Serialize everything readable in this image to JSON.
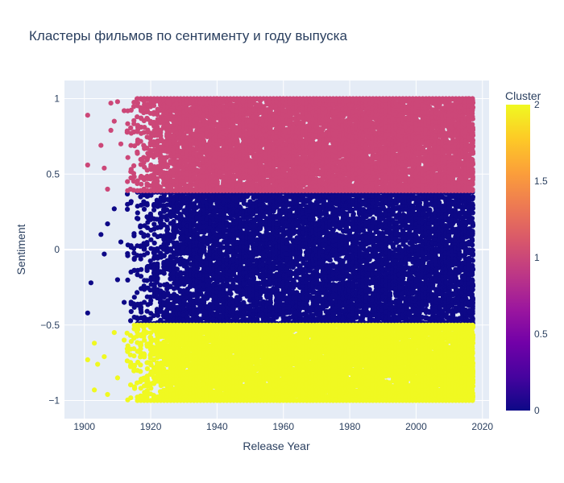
{
  "chart_data": {
    "type": "scatter",
    "title": "Кластеры фильмов по сентименту и году выпуска",
    "xlabel": "Release Year",
    "ylabel": "Sentiment",
    "xlim": [
      1894,
      2022
    ],
    "ylim": [
      -1.12,
      1.12
    ],
    "x_ticks": [
      "1900",
      "1920",
      "1940",
      "1960",
      "1980",
      "2000",
      "2020"
    ],
    "y_ticks": [
      "1",
      "0.5",
      "0",
      "−0.5",
      "−1"
    ],
    "grid": true,
    "colorbar": {
      "title": "Cluster",
      "ticks": [
        "2",
        "1.5",
        "1",
        "0.5",
        "0"
      ],
      "range": [
        0,
        2
      ],
      "colors": [
        "#0d0887",
        "#46039f",
        "#7201a8",
        "#9c179e",
        "#bd3786",
        "#d8576b",
        "#ed7953",
        "#fb9f3a",
        "#fdca26",
        "#f0f921"
      ]
    },
    "series": [
      {
        "cluster": 0,
        "color": "#0d0887",
        "sentiment_range": [
          -0.49,
          0.38
        ],
        "year_range": [
          1901,
          2017
        ]
      },
      {
        "cluster": 1,
        "color": "#cc4778",
        "sentiment_range": [
          0.39,
          1.0
        ],
        "year_range": [
          1901,
          2017
        ]
      },
      {
        "cluster": 2,
        "color": "#f0f921",
        "sentiment_range": [
          -1.0,
          -0.5
        ],
        "year_range": [
          1901,
          2017
        ]
      }
    ],
    "sparse_points": [
      {
        "x": 1901,
        "y": 0.89,
        "cluster": 1
      },
      {
        "x": 1901,
        "y": 0.56,
        "cluster": 1
      },
      {
        "x": 1906,
        "y": 0.54,
        "cluster": 1
      },
      {
        "x": 1905,
        "y": 0.69,
        "cluster": 1
      },
      {
        "x": 1908,
        "y": 0.79,
        "cluster": 1
      },
      {
        "x": 1908,
        "y": 0.97,
        "cluster": 1
      },
      {
        "x": 1910,
        "y": 0.98,
        "cluster": 1
      },
      {
        "x": 1907,
        "y": 0.4,
        "cluster": 1
      },
      {
        "x": 1909,
        "y": 0.85,
        "cluster": 1
      },
      {
        "x": 1912,
        "y": 0.92,
        "cluster": 1
      },
      {
        "x": 1911,
        "y": 0.7,
        "cluster": 1
      },
      {
        "x": 1913,
        "y": 0.45,
        "cluster": 1
      },
      {
        "x": 1901,
        "y": -0.42,
        "cluster": 0
      },
      {
        "x": 1902,
        "y": -0.22,
        "cluster": 0
      },
      {
        "x": 1905,
        "y": 0.1,
        "cluster": 0
      },
      {
        "x": 1906,
        "y": -0.03,
        "cluster": 0
      },
      {
        "x": 1907,
        "y": 0.17,
        "cluster": 0
      },
      {
        "x": 1909,
        "y": 0.27,
        "cluster": 0
      },
      {
        "x": 1910,
        "y": -0.2,
        "cluster": 0
      },
      {
        "x": 1911,
        "y": 0.05,
        "cluster": 0
      },
      {
        "x": 1912,
        "y": -0.35,
        "cluster": 0
      },
      {
        "x": 1913,
        "y": 0.3,
        "cluster": 0
      },
      {
        "x": 1901,
        "y": -0.73,
        "cluster": 2
      },
      {
        "x": 1903,
        "y": -0.62,
        "cluster": 2
      },
      {
        "x": 1904,
        "y": -0.76,
        "cluster": 2
      },
      {
        "x": 1903,
        "y": -0.93,
        "cluster": 2
      },
      {
        "x": 1906,
        "y": -0.71,
        "cluster": 2
      },
      {
        "x": 1907,
        "y": -0.96,
        "cluster": 2
      },
      {
        "x": 1909,
        "y": -0.55,
        "cluster": 2
      },
      {
        "x": 1910,
        "y": -0.85,
        "cluster": 2
      },
      {
        "x": 1912,
        "y": -0.6,
        "cluster": 2
      }
    ]
  }
}
